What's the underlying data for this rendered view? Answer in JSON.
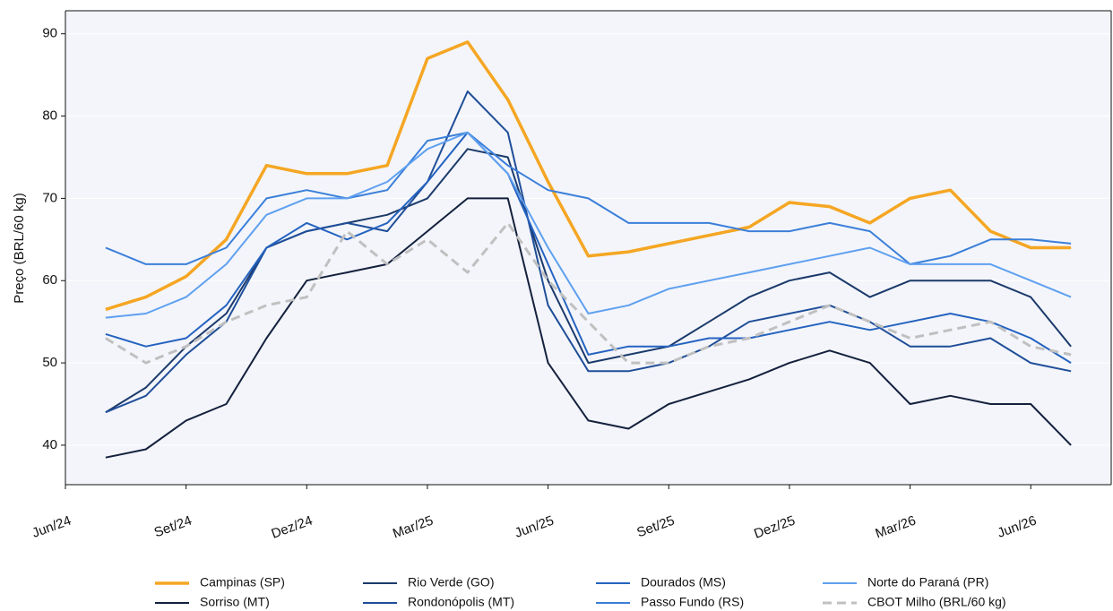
{
  "chart_data": {
    "type": "line",
    "ylabel": "Preço (BRL/60 kg)",
    "x": [
      "2024-07",
      "2024-08",
      "2024-09",
      "2024-10",
      "2024-11",
      "2024-12",
      "2025-01",
      "2025-02",
      "2025-03",
      "2025-04",
      "2025-05",
      "2025-06",
      "2025-07",
      "2025-08",
      "2025-09",
      "2025-10",
      "2025-11",
      "2025-12",
      "2026-01",
      "2026-02",
      "2026-03",
      "2026-04",
      "2026-05",
      "2026-06",
      "2026-07"
    ],
    "xlim": [
      "2024-06",
      "2026-08"
    ],
    "xticks": [
      {
        "value": "2024-06",
        "label": "Jun/24"
      },
      {
        "value": "2024-09",
        "label": "Set/24"
      },
      {
        "value": "2024-12",
        "label": "Dez/24"
      },
      {
        "value": "2025-03",
        "label": "Mar/25"
      },
      {
        "value": "2025-06",
        "label": "Jun/25"
      },
      {
        "value": "2025-09",
        "label": "Set/25"
      },
      {
        "value": "2025-12",
        "label": "Dez/25"
      },
      {
        "value": "2026-03",
        "label": "Mar/26"
      },
      {
        "value": "2026-06",
        "label": "Jun/26"
      }
    ],
    "ylim": [
      35.2,
      92.8
    ],
    "yticks": [
      40,
      50,
      60,
      70,
      80,
      90
    ],
    "grid": true,
    "legend": "bottom",
    "series": [
      {
        "name": "Campinas (SP)",
        "color": "#f5a623",
        "linewidth": 3.5,
        "values": [
          56.5,
          58,
          60.5,
          65,
          74,
          73,
          73,
          74,
          87,
          89,
          82,
          72,
          63,
          63.5,
          64.5,
          65.5,
          66.5,
          69.5,
          69,
          67,
          70,
          71,
          66,
          64,
          64
        ]
      },
      {
        "name": "Sorriso (MT)",
        "color": "#14213d",
        "linewidth": 2,
        "values": [
          38.5,
          39.5,
          43,
          45,
          53,
          60,
          61,
          62,
          66,
          70,
          70,
          50,
          43,
          42,
          45,
          46.5,
          48,
          50,
          51.5,
          50,
          45,
          46,
          45,
          45,
          40
        ]
      },
      {
        "name": "Rio Verde (GO)",
        "color": "#1b3a6b",
        "linewidth": 2,
        "values": [
          44,
          47,
          52,
          56,
          64,
          66,
          67,
          68,
          70,
          76,
          75,
          60,
          50,
          51,
          52,
          55,
          58,
          60,
          61,
          58,
          60,
          60,
          60,
          58,
          52
        ]
      },
      {
        "name": "Rondonópolis (MT)",
        "color": "#1f4e99",
        "linewidth": 2,
        "values": [
          44,
          46,
          51,
          55,
          64,
          66,
          67,
          66,
          72,
          83,
          78,
          57,
          49,
          49,
          50,
          52,
          55,
          56,
          57,
          55,
          52,
          52,
          53,
          50,
          49
        ]
      },
      {
        "name": "Dourados (MS)",
        "color": "#2563c0",
        "linewidth": 2,
        "values": [
          53.5,
          52,
          53,
          57,
          64,
          67,
          65,
          67,
          72,
          78,
          73,
          62,
          51,
          52,
          52,
          53,
          53,
          54,
          55,
          54,
          55,
          56,
          55,
          53,
          50
        ]
      },
      {
        "name": "Passo Fundo (RS)",
        "color": "#3b7fd9",
        "linewidth": 2,
        "values": [
          64,
          62,
          62,
          64,
          70,
          71,
          70,
          71,
          77,
          78,
          74,
          71,
          70,
          67,
          67,
          67,
          66,
          66,
          67,
          66,
          62,
          63,
          65,
          65,
          64.5
        ]
      },
      {
        "name": "Norte do Paraná (PR)",
        "color": "#5fa0f0",
        "linewidth": 2,
        "values": [
          55.5,
          56,
          58,
          62,
          68,
          70,
          70,
          72,
          76,
          78,
          73,
          64,
          56,
          57,
          59,
          60,
          61,
          62,
          63,
          64,
          62,
          62,
          62,
          60,
          58
        ]
      },
      {
        "name": "CBOT Milho (BRL/60 kg)",
        "color": "#c0c0c0",
        "linewidth": 3,
        "dashed": true,
        "values": [
          53,
          50,
          52,
          55,
          57,
          58,
          66,
          62,
          65,
          61,
          67,
          60,
          55,
          50,
          50,
          52,
          53,
          55,
          57,
          55,
          53,
          54,
          55,
          52,
          51
        ]
      }
    ]
  }
}
